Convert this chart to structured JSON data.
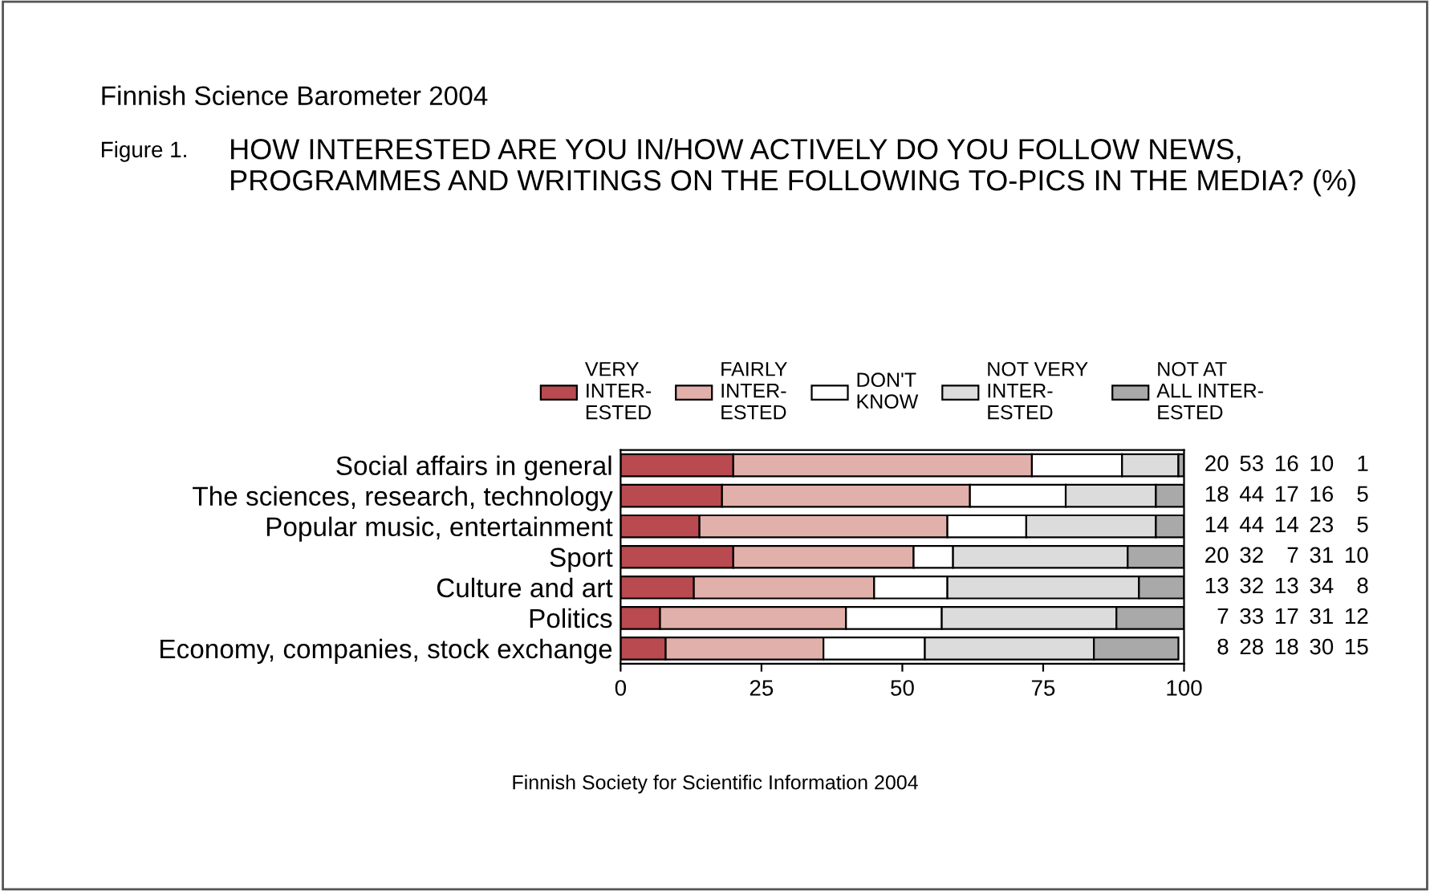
{
  "chart_data": {
    "type": "bar",
    "orientation": "horizontal",
    "stacked": true,
    "title": "Finnish Science Barometer 2004",
    "subtitle": "HOW INTERESTED ARE YOU IN/HOW ACTIVELY DO YOU FOLLOW NEWS, PROGRAMMES AND WRITINGS ON THE FOLLOWING TO-PICS IN THE MEDIA? (%)",
    "annotations": [
      "Figure 1.",
      "Finnish Society for Scientific Information 2004"
    ],
    "categories": [
      "Social affairs in general",
      "The sciences, research, technology",
      "Popular music, entertainment",
      "Sport",
      "Culture and art",
      "Politics",
      "Economy, companies, stock exchange"
    ],
    "series": [
      {
        "name": "VERY\nINTER-\nESTED",
        "color": "#b94a4f",
        "values": [
          20,
          18,
          14,
          20,
          13,
          7,
          8
        ]
      },
      {
        "name": "FAIRLY\nINTER-\nESTED",
        "color": "#e2b0ab",
        "values": [
          53,
          44,
          44,
          32,
          32,
          33,
          28
        ]
      },
      {
        "name": "DON'T\nKNOW",
        "color": "#ffffff",
        "values": [
          16,
          17,
          14,
          7,
          13,
          17,
          18
        ]
      },
      {
        "name": "NOT VERY\nINTER-\nESTED",
        "color": "#dcdcdc",
        "values": [
          10,
          16,
          23,
          31,
          34,
          31,
          30
        ]
      },
      {
        "name": "NOT AT\nALL INTER-\nESTED",
        "color": "#a9a9a9",
        "values": [
          1,
          5,
          5,
          10,
          8,
          12,
          15
        ]
      }
    ],
    "xlim": [
      0,
      100
    ],
    "xticks": [
      0,
      25,
      50,
      75,
      100
    ],
    "data_labels": true,
    "legend": "top",
    "grid": false
  }
}
